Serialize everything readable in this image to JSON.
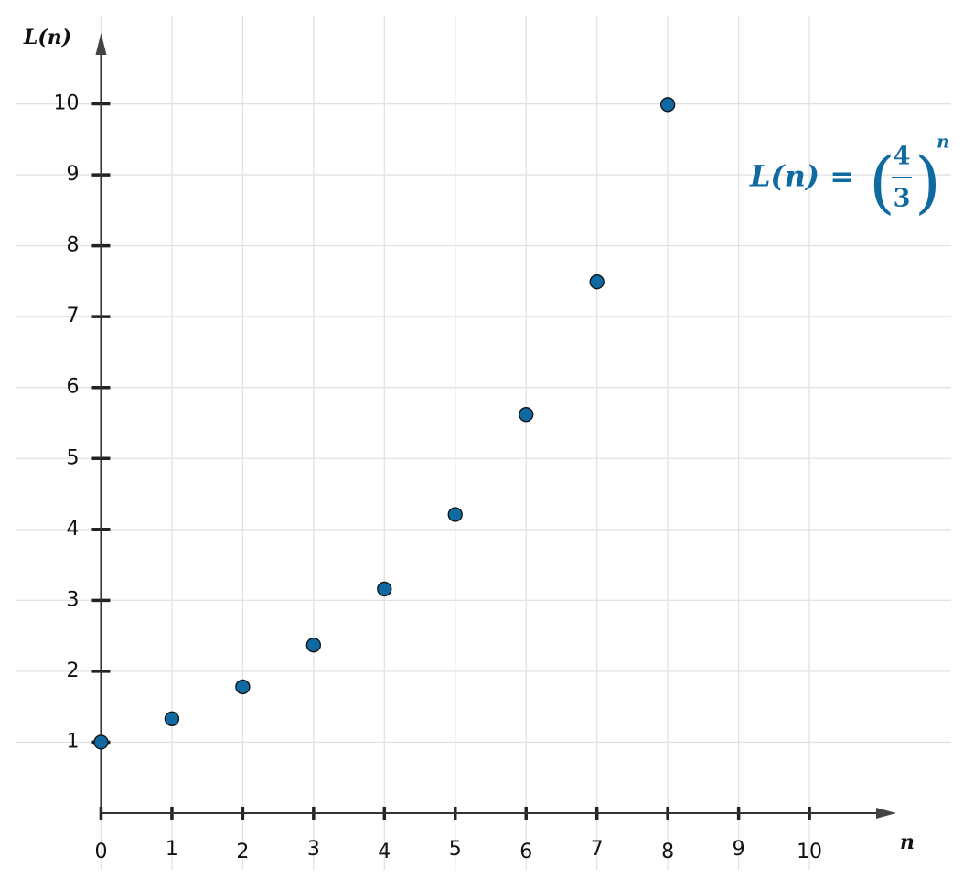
{
  "chart_data": {
    "type": "scatter",
    "x_label": "n",
    "y_label": "L(n)",
    "annotation": {
      "lhs": "L(n) =",
      "numerator": "4",
      "denominator": "3",
      "exponent": "n"
    },
    "x": [
      0,
      1,
      2,
      3,
      4,
      5,
      6,
      7,
      8
    ],
    "series": [
      {
        "name": "L(n)",
        "color": "#0e6aa0",
        "values": [
          1,
          1.33,
          1.78,
          2.37,
          3.16,
          4.21,
          5.62,
          7.49,
          9.99
        ]
      }
    ],
    "xlim": [
      -1,
      12
    ],
    "ylim": [
      -0.8,
      11
    ],
    "xticks": [
      0,
      1,
      2,
      3,
      4,
      5,
      6,
      7,
      8,
      9,
      10
    ],
    "yticks": [
      1,
      2,
      3,
      4,
      5,
      6,
      7,
      8,
      9,
      10
    ],
    "grid": true
  }
}
